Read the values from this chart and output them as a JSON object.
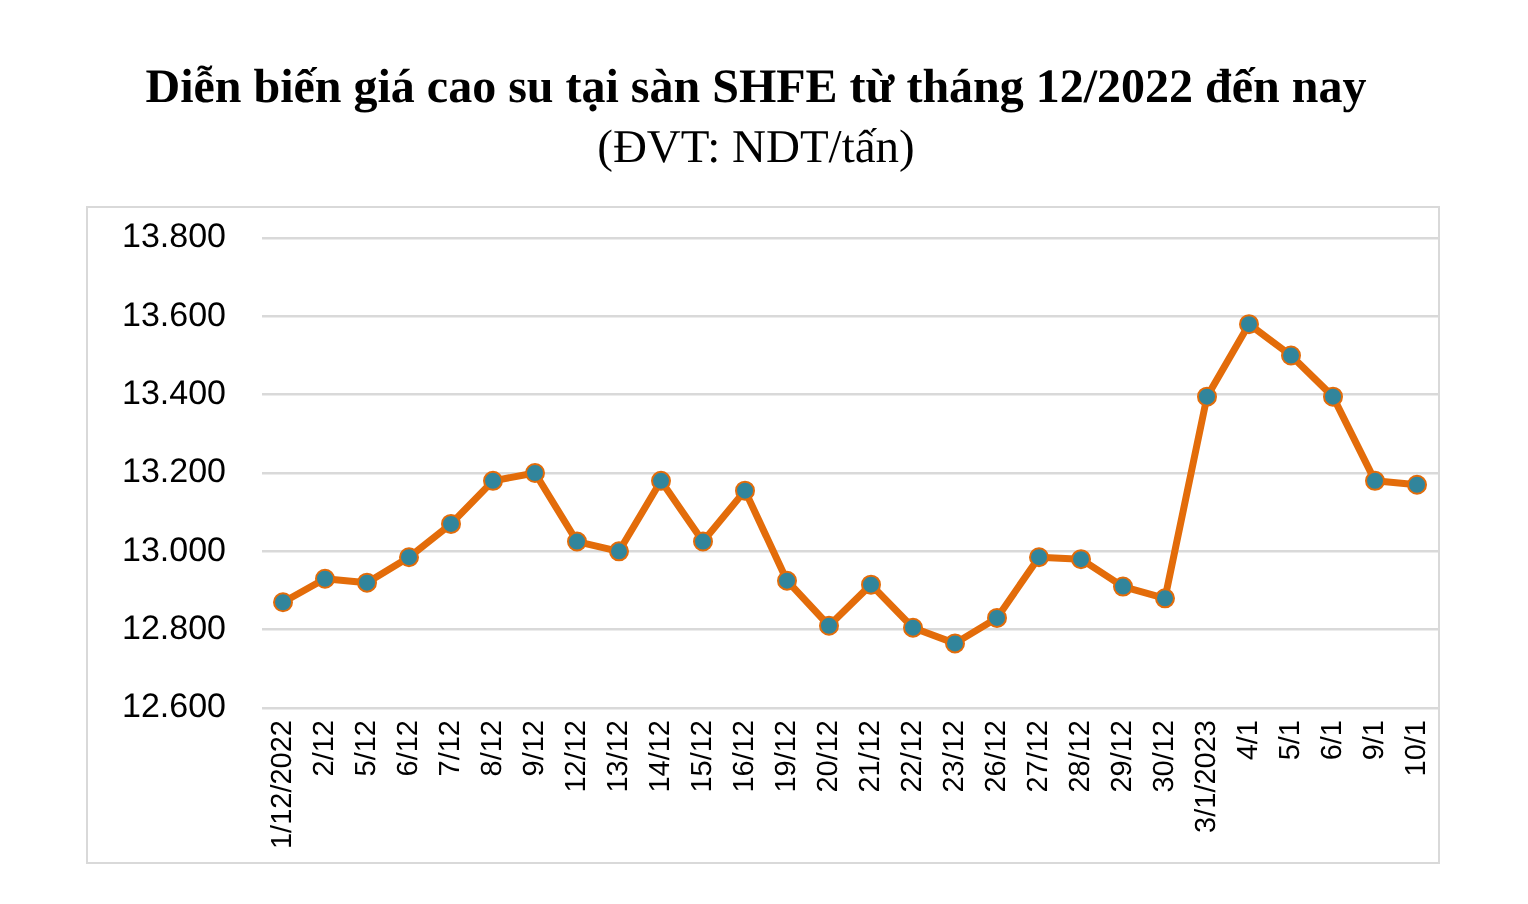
{
  "chart_data": {
    "type": "line",
    "title": "Diễn biến giá cao su tại sàn SHFE từ tháng 12/2022 đến nay",
    "subtitle": "(ĐVT: NDT/tấn)",
    "categories": [
      "1/12/2022",
      "2/12",
      "5/12",
      "6/12",
      "7/12",
      "8/12",
      "9/12",
      "12/12",
      "13/12",
      "14/12",
      "15/12",
      "16/12",
      "19/12",
      "20/12",
      "21/12",
      "22/12",
      "23/12",
      "26/12",
      "27/12",
      "28/12",
      "29/12",
      "30/12",
      "3/1/2023",
      "4/1",
      "5/1",
      "6/1",
      "9/1",
      "10/1"
    ],
    "values": [
      12870,
      12930,
      12920,
      12985,
      13070,
      13180,
      13200,
      13025,
      13000,
      13180,
      13025,
      13155,
      12925,
      12810,
      12915,
      12805,
      12765,
      12830,
      12985,
      12980,
      12910,
      12880,
      13395,
      13580,
      13500,
      13395,
      13180,
      13170
    ],
    "color": "#e36c0a",
    "ylim": [
      12600,
      13800
    ],
    "yticks": [
      {
        "value": 12600,
        "label": "12.600"
      },
      {
        "value": 12800,
        "label": "12.800"
      },
      {
        "value": 13000,
        "label": "13.000"
      },
      {
        "value": 13200,
        "label": "13.200"
      },
      {
        "value": 13400,
        "label": "13.400"
      },
      {
        "value": 13600,
        "label": "13.600"
      },
      {
        "value": 13800,
        "label": "13.800"
      }
    ],
    "grid": "y",
    "legend": false,
    "marker": "circle",
    "line_style": "solid"
  }
}
